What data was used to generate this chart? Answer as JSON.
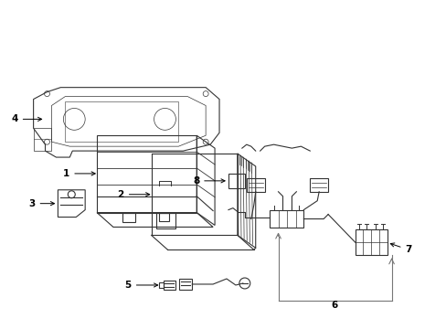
{
  "background_color": "#ffffff",
  "line_color": "#333333",
  "line_color_gray": "#777777",
  "label_color": "#000000",
  "fig_width": 4.89,
  "fig_height": 3.6,
  "dpi": 100
}
